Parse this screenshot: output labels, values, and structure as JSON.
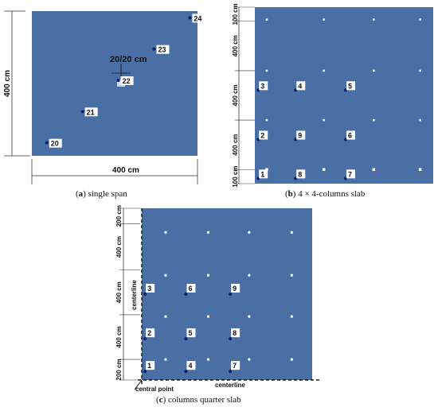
{
  "colors": {
    "slab": "#4a6fa5",
    "point": "#0b1e6b",
    "marker": "#ffffff",
    "dim_line": "#333333",
    "label_bg": "#ffffff"
  },
  "panel_a": {
    "caption_letter": "a",
    "caption_text": " single span",
    "dim_left": "400  cm",
    "dim_bottom": "400 cm",
    "column_label": "20/20 cm",
    "points": [
      {
        "label": "20",
        "xr": 0.05,
        "yr": 0.05
      },
      {
        "label": "21",
        "xr": 0.17,
        "yr": 0.17
      },
      {
        "label": "22",
        "xr": 0.29,
        "yr": 0.29
      },
      {
        "label": "23",
        "xr": 0.41,
        "yr": 0.41
      },
      {
        "label": "24",
        "xr": 0.53,
        "yr": 0.53
      }
    ]
  },
  "panel_b": {
    "caption_letter": "b",
    "caption_text": " 4 × 4-columns slab",
    "dims_left": [
      "100 cm",
      "400 cm",
      "400 cm",
      "400 cm",
      "100 cm"
    ],
    "points": [
      {
        "label": "1",
        "col": 0,
        "row": 0
      },
      {
        "label": "8",
        "col": 1,
        "row": 0
      },
      {
        "label": "7",
        "col": 2,
        "row": 0
      },
      {
        "label": "2",
        "col": 0,
        "row": 1
      },
      {
        "label": "9",
        "col": 1,
        "row": 1
      },
      {
        "label": "6",
        "col": 2,
        "row": 1
      },
      {
        "label": "3",
        "col": 0,
        "row": 2
      },
      {
        "label": "4",
        "col": 1,
        "row": 2
      },
      {
        "label": "5",
        "col": 2,
        "row": 2
      }
    ]
  },
  "panel_c": {
    "caption_letter": "c",
    "caption_text": " columns quarter slab",
    "dims_left": [
      "200 cm",
      "400 cm",
      "400 cm",
      "400 cm",
      "200 cm"
    ],
    "centerline_v": "centerline",
    "centerline_h": "centerline",
    "central_point": "central point",
    "points": [
      {
        "label": "1",
        "col": 0,
        "row": 0
      },
      {
        "label": "4",
        "col": 1,
        "row": 0
      },
      {
        "label": "7",
        "col": 2,
        "row": 0
      },
      {
        "label": "2",
        "col": 0,
        "row": 1
      },
      {
        "label": "5",
        "col": 1,
        "row": 1
      },
      {
        "label": "8",
        "col": 2,
        "row": 1
      },
      {
        "label": "3",
        "col": 0,
        "row": 2
      },
      {
        "label": "6",
        "col": 1,
        "row": 2
      },
      {
        "label": "9",
        "col": 2,
        "row": 2
      }
    ]
  }
}
